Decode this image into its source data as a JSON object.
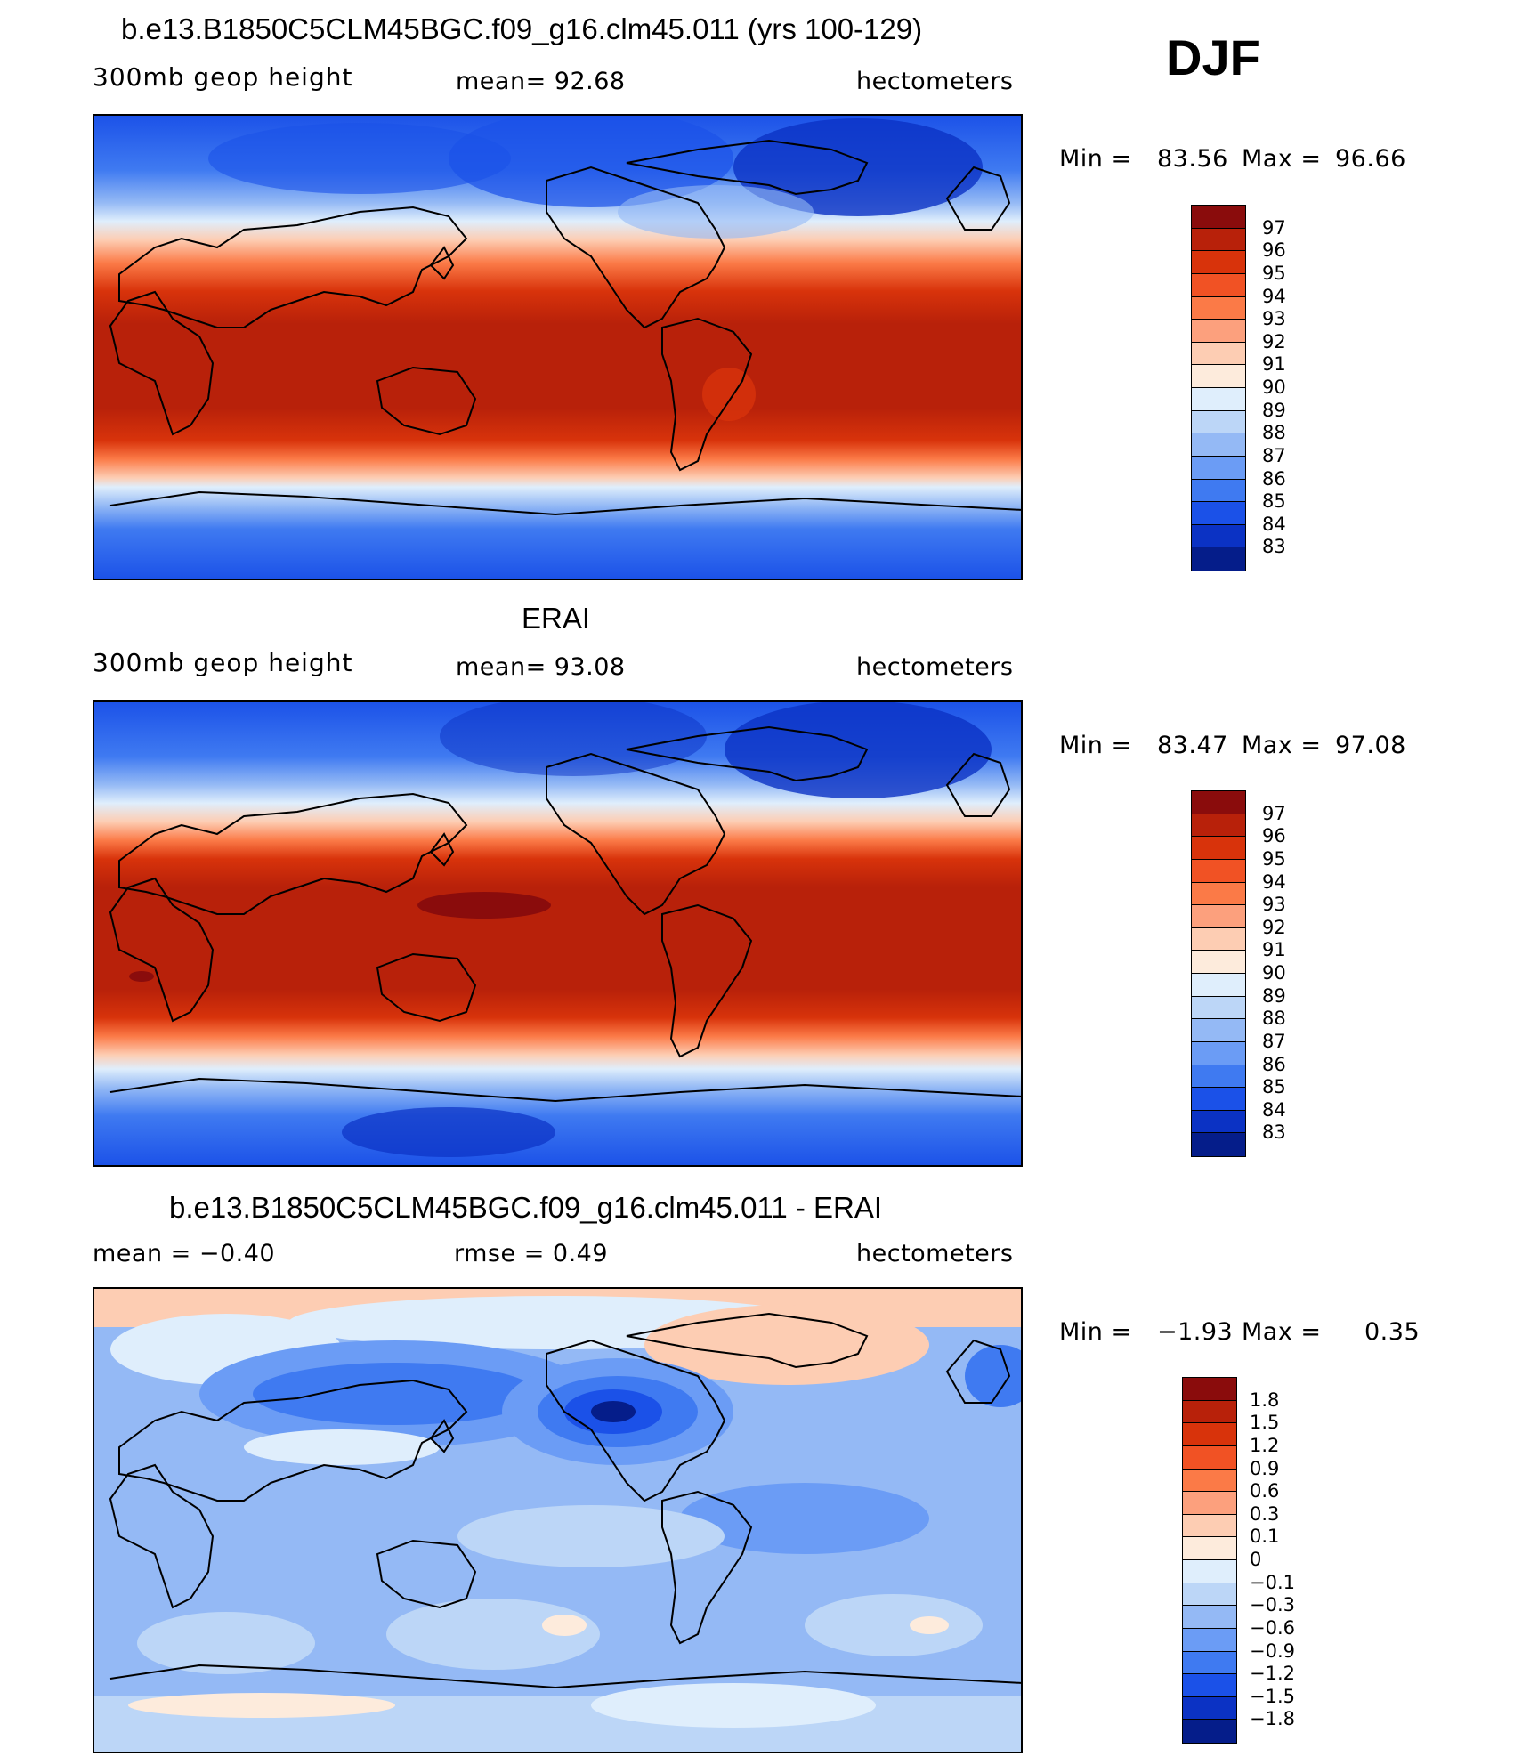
{
  "season": "DJF",
  "panels": [
    {
      "title": "b.e13.B1850C5CLM45BGC.f09_g16.clm45.011 (yrs 100-129)",
      "left_label": "300mb  geop  height",
      "center_label": "mean=   92.68",
      "right_label": "hectometers",
      "minmax": {
        "min_label": "Min  =",
        "min": "83.56",
        "max_label": "Max  =",
        "max": "96.66"
      },
      "colorbar": {
        "labels": [
          "97",
          "96",
          "95",
          "94",
          "93",
          "92",
          "91",
          "90",
          "89",
          "88",
          "87",
          "86",
          "85",
          "84",
          "83"
        ],
        "colors": [
          "#8a0c0c",
          "#b8210a",
          "#d8330b",
          "#f15224",
          "#fb7a47",
          "#fca07d",
          "#fdcdb3",
          "#fdebdc",
          "#dfeefc",
          "#bcd6f7",
          "#94b9f5",
          "#6b9cf5",
          "#3f7af1",
          "#1b51e8",
          "#0b32c4",
          "#051d8a"
        ]
      }
    },
    {
      "title": "ERAI",
      "left_label": "300mb  geop  height",
      "center_label": "mean=   93.08",
      "right_label": "hectometers",
      "minmax": {
        "min_label": "Min  =",
        "min": "83.47",
        "max_label": "Max  =",
        "max": "97.08"
      },
      "colorbar": {
        "labels": [
          "97",
          "96",
          "95",
          "94",
          "93",
          "92",
          "91",
          "90",
          "89",
          "88",
          "87",
          "86",
          "85",
          "84",
          "83"
        ],
        "colors": [
          "#8a0c0c",
          "#b8210a",
          "#d8330b",
          "#f15224",
          "#fb7a47",
          "#fca07d",
          "#fdcdb3",
          "#fdebdc",
          "#dfeefc",
          "#bcd6f7",
          "#94b9f5",
          "#6b9cf5",
          "#3f7af1",
          "#1b51e8",
          "#0b32c4",
          "#051d8a"
        ]
      }
    },
    {
      "title": "b.e13.B1850C5CLM45BGC.f09_g16.clm45.011 - ERAI",
      "left_label": "mean  =    −0.40",
      "center_label": "rmse  =     0.49",
      "right_label": "hectometers",
      "minmax": {
        "min_label": "Min  =",
        "min": "−1.93",
        "max_label": "Max  =",
        "max": "0.35"
      },
      "colorbar": {
        "labels": [
          "1.8",
          "1.5",
          "1.2",
          "0.9",
          "0.6",
          "0.3",
          "0.1",
          "0",
          "−0.1",
          "−0.3",
          "−0.6",
          "−0.9",
          "−1.2",
          "−1.5",
          "−1.8"
        ],
        "colors": [
          "#8a0c0c",
          "#b8210a",
          "#d8330b",
          "#f15224",
          "#fb7a47",
          "#fca07d",
          "#fdcdb3",
          "#fdebdc",
          "#dfeefc",
          "#bcd6f7",
          "#94b9f5",
          "#6b9cf5",
          "#3f7af1",
          "#1b51e8",
          "#0b32c4",
          "#051d8a"
        ]
      }
    }
  ]
}
